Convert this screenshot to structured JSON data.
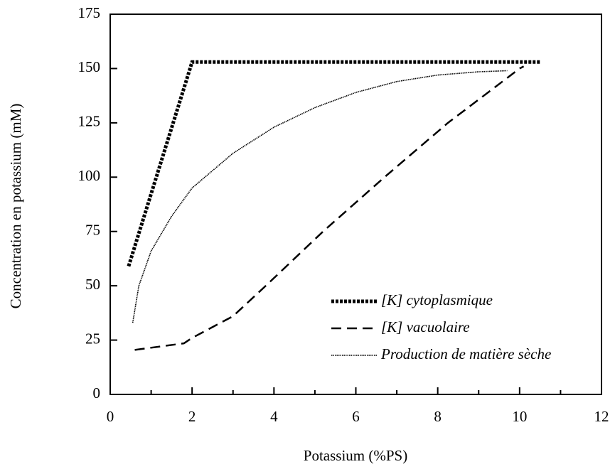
{
  "chart_data": {
    "type": "line",
    "xlabel": "Potassium (%PS)",
    "ylabel": "Concentration en potassium (mM)",
    "xlim": [
      0,
      12
    ],
    "xticks": [
      0,
      2,
      4,
      6,
      8,
      10,
      12
    ],
    "x_minor_ticks": [
      1,
      3,
      5,
      7,
      9,
      11
    ],
    "ylim": [
      0,
      175
    ],
    "yticks": [
      0,
      25,
      50,
      75,
      100,
      125,
      150,
      175
    ],
    "legend": "lower right",
    "series": [
      {
        "name": "[K] cytoplasmique",
        "color": "#000000",
        "line_style": "dotted-thick",
        "x": [
          0.45,
          2.0,
          10.5
        ],
        "values": [
          59,
          153,
          153
        ]
      },
      {
        "name": "[K] vacuolaire",
        "color": "#000000",
        "line_style": "dashed",
        "x": [
          0.6,
          1.8,
          2.0,
          3.0,
          3.8,
          5.2,
          6.7,
          8.25,
          10.0,
          10.1
        ],
        "values": [
          20.5,
          23.5,
          26,
          36,
          50,
          75,
          100,
          125,
          150,
          151
        ]
      },
      {
        "name": "Production de matière sèche",
        "color": "#000000",
        "line_style": "dotted",
        "x": [
          0.55,
          0.7,
          1.0,
          1.5,
          2.0,
          3.0,
          4.0,
          5.0,
          6.0,
          7.0,
          8.0,
          9.0,
          9.7
        ],
        "values": [
          33,
          50,
          66,
          82,
          95,
          111,
          123,
          132,
          139,
          144,
          147,
          148.5,
          149
        ]
      }
    ]
  }
}
